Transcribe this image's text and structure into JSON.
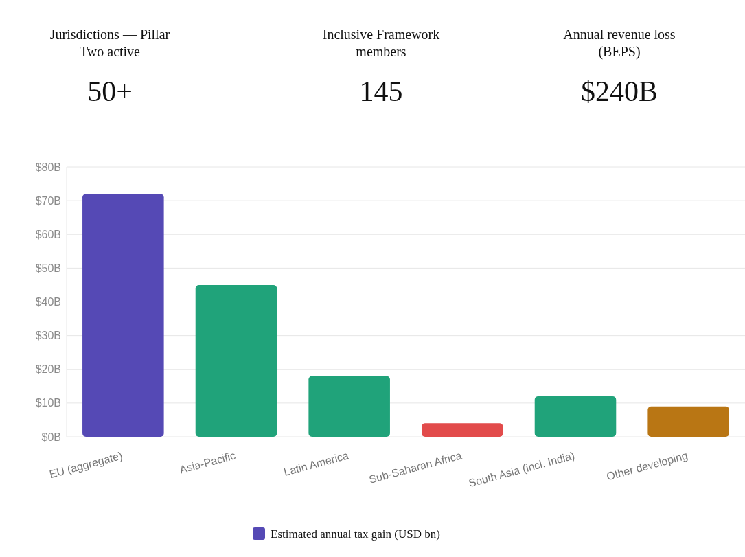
{
  "chart_data": [
    {
      "type": "other",
      "annotations": [
        "Jurisdictions — Pillar Two active",
        "50+",
        "Inclusive Framework members",
        "145",
        "Annual revenue loss (BEPS)",
        "$240B"
      ]
    },
    {
      "type": "bar",
      "categories": [
        "EU (aggregate)",
        "Asia-Pacific",
        "Latin America",
        "Sub-Saharan Africa",
        "South Asia (incl. India)",
        "Other developing"
      ],
      "series": [
        {
          "name": "Estimated annual tax gain (USD bn)",
          "color": "#5549b5",
          "colors": [
            "#5549b5",
            "#20a37a",
            "#20a37a",
            "#e24b4b",
            "#20a37a",
            "#b97614"
          ],
          "values": [
            72,
            45,
            18,
            4,
            12,
            9
          ]
        }
      ],
      "ylim": [
        0,
        80
      ],
      "yticks": [
        {
          "value": 0,
          "label": "$0B"
        },
        {
          "value": 10,
          "label": "$10B"
        },
        {
          "value": 20,
          "label": "$20B"
        },
        {
          "value": 30,
          "label": "$30B"
        },
        {
          "value": 40,
          "label": "$40B"
        },
        {
          "value": 50,
          "label": "$50B"
        },
        {
          "value": 60,
          "label": "$60B"
        },
        {
          "value": 70,
          "label": "$70B"
        },
        {
          "value": 80,
          "label": "$80B"
        }
      ],
      "grid": "y",
      "legend": "bottom"
    }
  ]
}
